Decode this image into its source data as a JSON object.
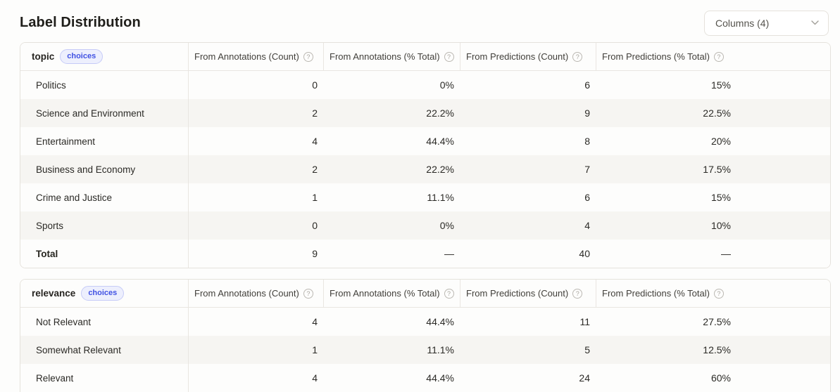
{
  "page": {
    "title": "Label Distribution"
  },
  "toolbar": {
    "columns_label": "Columns (4)"
  },
  "columns": [
    "From Annotations (Count)",
    "From Annotations (% Total)",
    "From Predictions (Count)",
    "From Predictions (% Total)"
  ],
  "help_glyph": "?",
  "tables": [
    {
      "field": "topic",
      "badge": "choices",
      "rows": [
        {
          "label": "Politics",
          "values": [
            "0",
            "0%",
            "6",
            "15%"
          ]
        },
        {
          "label": "Science and Environment",
          "values": [
            "2",
            "22.2%",
            "9",
            "22.5%"
          ]
        },
        {
          "label": "Entertainment",
          "values": [
            "4",
            "44.4%",
            "8",
            "20%"
          ]
        },
        {
          "label": "Business and Economy",
          "values": [
            "2",
            "22.2%",
            "7",
            "17.5%"
          ]
        },
        {
          "label": "Crime and Justice",
          "values": [
            "1",
            "11.1%",
            "6",
            "15%"
          ]
        },
        {
          "label": "Sports",
          "values": [
            "0",
            "0%",
            "4",
            "10%"
          ]
        },
        {
          "label": "Total",
          "values": [
            "9",
            "—",
            "40",
            "—"
          ],
          "is_total": true
        }
      ],
      "has_partial_row": false
    },
    {
      "field": "relevance",
      "badge": "choices",
      "rows": [
        {
          "label": "Not Relevant",
          "values": [
            "4",
            "44.4%",
            "11",
            "27.5%"
          ]
        },
        {
          "label": "Somewhat Relevant",
          "values": [
            "1",
            "11.1%",
            "5",
            "12.5%"
          ]
        },
        {
          "label": "Relevant",
          "values": [
            "4",
            "44.4%",
            "24",
            "60%"
          ]
        }
      ],
      "has_partial_row": true
    }
  ],
  "colors": {
    "badge_text": "#4152e3",
    "badge_bg": "#edeffd",
    "badge_border": "#c6cbf7",
    "page_bg": "#fdfdfc",
    "table_border": "#e5e2dc",
    "row_alt": "#f6f5f2"
  }
}
